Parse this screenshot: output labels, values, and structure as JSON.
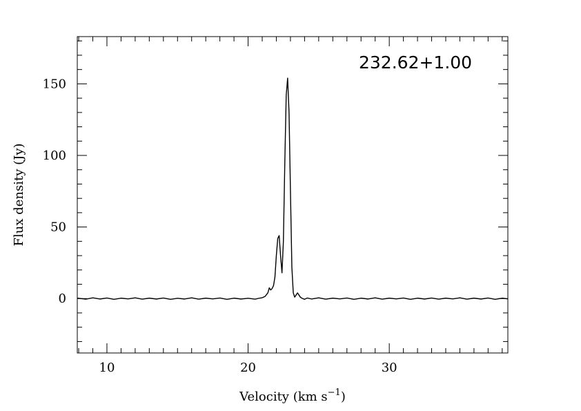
{
  "chart_data": {
    "type": "line",
    "title": "",
    "annotation": "232.62+1.00",
    "xlabel": "Velocity (km s",
    "xlabel_superscript": "−1",
    "xlabel_suffix": ")",
    "ylabel": "Flux density (Jy)",
    "xlim": [
      7.9,
      38.4
    ],
    "ylim": [
      -38,
      183
    ],
    "x_ticks": [
      10,
      20,
      30
    ],
    "y_ticks": [
      0,
      50,
      100,
      150
    ],
    "x_minor_step": 1,
    "y_minor_step": 10,
    "grid": false,
    "legend": "none",
    "line_color": "#000000",
    "series": [
      {
        "x": [
          7.9,
          8.5,
          9.0,
          9.5,
          10.0,
          10.5,
          11.0,
          11.5,
          12.0,
          12.5,
          13.0,
          13.5,
          14.0,
          14.5,
          15.0,
          15.5,
          16.0,
          16.5,
          17.0,
          17.5,
          18.0,
          18.5,
          19.0,
          19.5,
          20.0,
          20.5,
          20.8,
          21.0,
          21.2,
          21.4,
          21.5,
          21.6,
          21.7,
          21.8,
          21.9,
          22.0,
          22.1,
          22.2,
          22.3,
          22.4,
          22.5,
          22.6,
          22.7,
          22.8,
          22.9,
          23.0,
          23.1,
          23.2,
          23.3,
          23.4,
          23.5,
          23.6,
          23.7,
          23.8,
          24.0,
          24.2,
          24.5,
          25.0,
          25.5,
          26.0,
          26.5,
          27.0,
          27.5,
          28.0,
          28.5,
          29.0,
          29.5,
          30.0,
          30.5,
          31.0,
          31.5,
          32.0,
          32.5,
          33.0,
          33.5,
          34.0,
          34.5,
          35.0,
          35.5,
          36.0,
          36.5,
          37.0,
          37.5,
          38.0,
          38.4
        ],
        "values": [
          0.3,
          -0.4,
          0.5,
          -0.3,
          0.4,
          -0.5,
          0.3,
          -0.2,
          0.5,
          -0.4,
          0.3,
          -0.3,
          0.4,
          -0.5,
          0.2,
          -0.3,
          0.5,
          -0.4,
          0.3,
          -0.2,
          0.4,
          -0.5,
          0.3,
          -0.3,
          0.2,
          -0.4,
          0.3,
          0.6,
          1.5,
          4.0,
          7.5,
          6.0,
          7.0,
          9.0,
          15.0,
          30.0,
          42.0,
          44.0,
          30.0,
          18.0,
          40.0,
          95.0,
          142.0,
          154.0,
          130.0,
          75.0,
          22.0,
          4.0,
          1.0,
          2.5,
          4.0,
          2.5,
          1.0,
          0.3,
          -0.5,
          0.4,
          -0.3,
          0.5,
          -0.4,
          0.3,
          -0.2,
          0.4,
          -0.5,
          0.3,
          -0.3,
          0.5,
          -0.4,
          0.3,
          -0.2,
          0.4,
          -0.5,
          0.3,
          -0.3,
          0.4,
          -0.4,
          0.3,
          -0.2,
          0.5,
          -0.4,
          0.3,
          -0.3,
          0.4,
          -0.5,
          0.3,
          -0.2
        ]
      }
    ]
  }
}
